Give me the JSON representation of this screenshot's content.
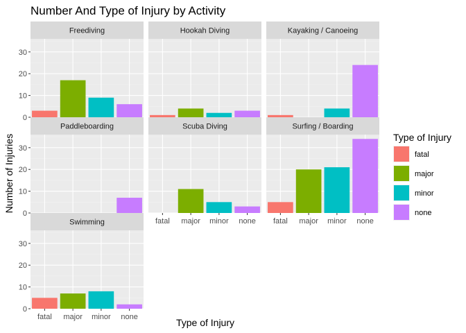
{
  "chart_data": {
    "type": "bar",
    "title": "Number And Type of Injury by Activity",
    "xlabel": "Type of Injury",
    "ylabel": "Number of Injuries",
    "categories": [
      "fatal",
      "major",
      "minor",
      "none"
    ],
    "ylim": [
      0,
      36
    ],
    "yticks": [
      0,
      10,
      20,
      30
    ],
    "legend": {
      "title": "Type of Injury",
      "placement": "right",
      "entries": [
        "fatal",
        "major",
        "minor",
        "none"
      ]
    },
    "colors": [
      "#F8766D",
      "#7CAE00",
      "#00BFC4",
      "#C77CFF"
    ],
    "panel_background": "#EBEBEB",
    "strip_background": "#D9D9D9",
    "grid": true,
    "facets": [
      {
        "name": "Freediving",
        "values": [
          3,
          17,
          9,
          6
        ]
      },
      {
        "name": "Hookah Diving",
        "values": [
          1,
          4,
          2,
          3
        ]
      },
      {
        "name": "Kayaking / Canoeing",
        "values": [
          1,
          0,
          4,
          24
        ]
      },
      {
        "name": "Paddleboarding",
        "values": [
          0,
          0,
          0,
          7
        ]
      },
      {
        "name": "Scuba Diving",
        "values": [
          0,
          11,
          5,
          3
        ]
      },
      {
        "name": "Surfing / Boarding",
        "values": [
          5,
          20,
          21,
          34
        ]
      },
      {
        "name": "Swimming",
        "values": [
          5,
          7,
          8,
          2
        ]
      }
    ]
  }
}
